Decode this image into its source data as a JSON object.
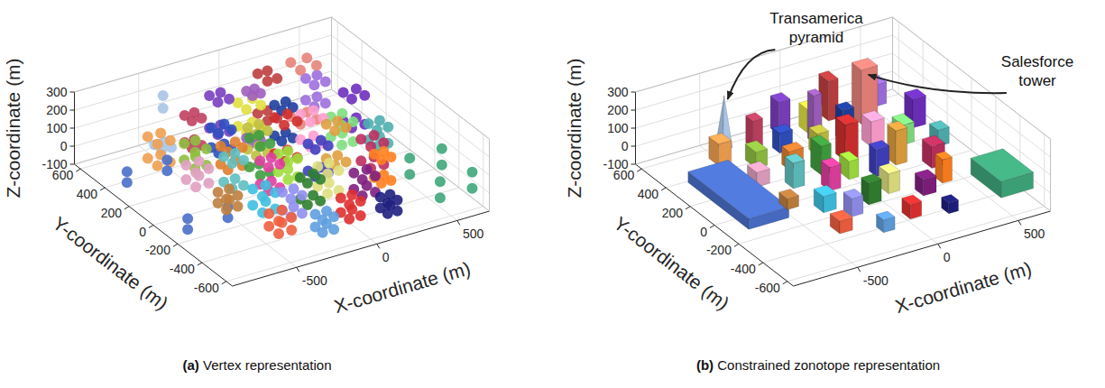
{
  "chart_data": [
    {
      "type": "scatter3d",
      "title": "(a) Vertex representation",
      "xlabel": "X-coordinate (m)",
      "ylabel": "Y-coordinate (m)",
      "zlabel": "Z-coordinate (m)",
      "xlim": [
        -900,
        700
      ],
      "xticks": [
        -500,
        0,
        500
      ],
      "ylim": [
        -650,
        650
      ],
      "yticks": [
        -600,
        -400,
        -200,
        0,
        200,
        400,
        600
      ],
      "zlim": [
        -100,
        300
      ],
      "zticks": [
        -100,
        0,
        100,
        200,
        300
      ],
      "grid": true,
      "pyramid": {
        "x": -500,
        "y": 450,
        "w": 60,
        "d": 60,
        "z": 280,
        "color": "#a9c4e6"
      },
      "buildings": [
        {
          "x": -750,
          "y": 0,
          "w": 250,
          "d": 500,
          "z": 60,
          "color": "#4a6fc9"
        },
        {
          "x": 550,
          "y": -450,
          "w": 200,
          "d": 250,
          "z": 90,
          "color": "#3fa67a"
        },
        {
          "x": -600,
          "y": 350,
          "w": 80,
          "d": 80,
          "z": 120,
          "color": "#f0a050"
        },
        {
          "x": -450,
          "y": 250,
          "w": 70,
          "d": 90,
          "z": 90,
          "color": "#8fbf3f"
        },
        {
          "x": -350,
          "y": 400,
          "w": 60,
          "d": 60,
          "z": 150,
          "color": "#c04060"
        },
        {
          "x": -250,
          "y": 300,
          "w": 80,
          "d": 60,
          "z": 110,
          "color": "#2f4fbf"
        },
        {
          "x": -150,
          "y": 450,
          "w": 70,
          "d": 70,
          "z": 180,
          "color": "#7a3fbf"
        },
        {
          "x": 0,
          "y": 400,
          "w": 90,
          "d": 70,
          "z": 130,
          "color": "#e0e040"
        },
        {
          "x": 150,
          "y": 450,
          "w": 60,
          "d": 80,
          "z": 220,
          "color": "#bf3f3f"
        },
        {
          "x": 300,
          "y": 350,
          "w": 100,
          "d": 80,
          "z": 300,
          "color": "#e8837a"
        },
        {
          "x": 450,
          "y": 450,
          "w": 70,
          "d": 70,
          "z": 120,
          "color": "#9f6fdf"
        },
        {
          "x": -550,
          "y": 100,
          "w": 80,
          "d": 80,
          "z": 80,
          "color": "#e0a0c0"
        },
        {
          "x": -400,
          "y": 0,
          "w": 70,
          "d": 70,
          "z": 140,
          "color": "#5fbfbf"
        },
        {
          "x": -300,
          "y": 150,
          "w": 90,
          "d": 60,
          "z": 100,
          "color": "#df7f2f"
        },
        {
          "x": -200,
          "y": 50,
          "w": 60,
          "d": 90,
          "z": 160,
          "color": "#3f9f3f"
        },
        {
          "x": -100,
          "y": 200,
          "w": 70,
          "d": 70,
          "z": 120,
          "color": "#bfbf3f"
        },
        {
          "x": 0,
          "y": 100,
          "w": 80,
          "d": 80,
          "z": 200,
          "color": "#cf2f2f"
        },
        {
          "x": 100,
          "y": 250,
          "w": 70,
          "d": 60,
          "z": 170,
          "color": "#1f3f9f"
        },
        {
          "x": 200,
          "y": 150,
          "w": 80,
          "d": 80,
          "z": 140,
          "color": "#ff9fcf"
        },
        {
          "x": 350,
          "y": 100,
          "w": 70,
          "d": 90,
          "z": 110,
          "color": "#7fdf7f"
        },
        {
          "x": 500,
          "y": 200,
          "w": 80,
          "d": 70,
          "z": 160,
          "color": "#6f2fbf"
        },
        {
          "x": -550,
          "y": -150,
          "w": 70,
          "d": 70,
          "z": 60,
          "color": "#bf7f3f"
        },
        {
          "x": -400,
          "y": -250,
          "w": 80,
          "d": 80,
          "z": 90,
          "color": "#3fbfdf"
        },
        {
          "x": -250,
          "y": -100,
          "w": 70,
          "d": 70,
          "z": 130,
          "color": "#df3f9f"
        },
        {
          "x": -100,
          "y": -50,
          "w": 60,
          "d": 80,
          "z": 100,
          "color": "#9fdf3f"
        },
        {
          "x": 50,
          "y": -100,
          "w": 80,
          "d": 60,
          "z": 150,
          "color": "#3f3fbf"
        },
        {
          "x": 200,
          "y": -50,
          "w": 70,
          "d": 70,
          "z": 190,
          "color": "#df9f3f"
        },
        {
          "x": 350,
          "y": -150,
          "w": 80,
          "d": 80,
          "z": 120,
          "color": "#bf2f5f"
        },
        {
          "x": 500,
          "y": 0,
          "w": 70,
          "d": 70,
          "z": 90,
          "color": "#4fafaf"
        },
        {
          "x": -450,
          "y": -450,
          "w": 80,
          "d": 80,
          "z": 70,
          "color": "#ef5f3f"
        },
        {
          "x": -300,
          "y": -350,
          "w": 70,
          "d": 70,
          "z": 100,
          "color": "#8f8fef"
        },
        {
          "x": -150,
          "y": -300,
          "w": 80,
          "d": 60,
          "z": 120,
          "color": "#2f7f2f"
        },
        {
          "x": 0,
          "y": -250,
          "w": 70,
          "d": 80,
          "z": 110,
          "color": "#dfdf7f"
        },
        {
          "x": 150,
          "y": -350,
          "w": 80,
          "d": 70,
          "z": 90,
          "color": "#7f1f7f"
        },
        {
          "x": 300,
          "y": -300,
          "w": 60,
          "d": 60,
          "z": 130,
          "color": "#ff7f1f"
        },
        {
          "x": -50,
          "y": -500,
          "w": 70,
          "d": 70,
          "z": 80,
          "color": "#df2f2f"
        },
        {
          "x": 150,
          "y": -550,
          "w": 60,
          "d": 60,
          "z": 60,
          "color": "#1f1f7f"
        },
        {
          "x": -250,
          "y": -550,
          "w": 70,
          "d": 60,
          "z": 70,
          "color": "#5f9fdf"
        },
        {
          "x": -50,
          "y": 300,
          "w": 50,
          "d": 50,
          "z": 260,
          "color": "#9f5fbf"
        }
      ]
    },
    {
      "type": "bar3d",
      "title": "(b) Constrained zonotope representation",
      "xlabel": "X-coordinate (m)",
      "ylabel": "Y-coordinate (m)",
      "zlabel": "Z-coordinate (m)",
      "xlim": [
        -900,
        700
      ],
      "xticks": [
        -500,
        0,
        500
      ],
      "ylim": [
        -650,
        650
      ],
      "yticks": [
        -600,
        -400,
        -200,
        0,
        200,
        400,
        600
      ],
      "zlim": [
        -100,
        300
      ],
      "zticks": [
        -100,
        0,
        100,
        200,
        300
      ],
      "grid": true,
      "annotations": [
        {
          "text": "Transamerica pyramid",
          "x": -500,
          "y": 450,
          "z": 250
        },
        {
          "text": "Salesforce tower",
          "x": 300,
          "y": 350,
          "z": 230
        }
      ],
      "pyramid": {
        "x": -500,
        "y": 450,
        "w": 60,
        "d": 60,
        "z": 280,
        "color": "#a9c4e6"
      },
      "buildings": [
        {
          "x": -750,
          "y": 0,
          "w": 250,
          "d": 500,
          "z": 60,
          "color": "#4a6fc9"
        },
        {
          "x": 550,
          "y": -450,
          "w": 200,
          "d": 250,
          "z": 90,
          "color": "#3fa67a"
        },
        {
          "x": -600,
          "y": 350,
          "w": 80,
          "d": 80,
          "z": 120,
          "color": "#f0a050"
        },
        {
          "x": -450,
          "y": 250,
          "w": 70,
          "d": 90,
          "z": 90,
          "color": "#8fbf3f"
        },
        {
          "x": -350,
          "y": 400,
          "w": 60,
          "d": 60,
          "z": 150,
          "color": "#c04060"
        },
        {
          "x": -250,
          "y": 300,
          "w": 80,
          "d": 60,
          "z": 110,
          "color": "#2f4fbf"
        },
        {
          "x": -150,
          "y": 450,
          "w": 70,
          "d": 70,
          "z": 180,
          "color": "#7a3fbf"
        },
        {
          "x": 0,
          "y": 400,
          "w": 90,
          "d": 70,
          "z": 130,
          "color": "#e0e040"
        },
        {
          "x": 150,
          "y": 450,
          "w": 60,
          "d": 80,
          "z": 220,
          "color": "#bf3f3f"
        },
        {
          "x": 300,
          "y": 350,
          "w": 100,
          "d": 80,
          "z": 300,
          "color": "#e8837a"
        },
        {
          "x": 450,
          "y": 450,
          "w": 70,
          "d": 70,
          "z": 120,
          "color": "#9f6fdf"
        },
        {
          "x": -550,
          "y": 100,
          "w": 80,
          "d": 80,
          "z": 80,
          "color": "#e0a0c0"
        },
        {
          "x": -400,
          "y": 0,
          "w": 70,
          "d": 70,
          "z": 140,
          "color": "#5fbfbf"
        },
        {
          "x": -300,
          "y": 150,
          "w": 90,
          "d": 60,
          "z": 100,
          "color": "#df7f2f"
        },
        {
          "x": -200,
          "y": 50,
          "w": 60,
          "d": 90,
          "z": 160,
          "color": "#3f9f3f"
        },
        {
          "x": -100,
          "y": 200,
          "w": 70,
          "d": 70,
          "z": 120,
          "color": "#bfbf3f"
        },
        {
          "x": 0,
          "y": 100,
          "w": 80,
          "d": 80,
          "z": 200,
          "color": "#cf2f2f"
        },
        {
          "x": 100,
          "y": 250,
          "w": 70,
          "d": 60,
          "z": 170,
          "color": "#1f3f9f"
        },
        {
          "x": 200,
          "y": 150,
          "w": 80,
          "d": 80,
          "z": 140,
          "color": "#ff9fcf"
        },
        {
          "x": 350,
          "y": 100,
          "w": 70,
          "d": 90,
          "z": 110,
          "color": "#7fdf7f"
        },
        {
          "x": 500,
          "y": 200,
          "w": 80,
          "d": 70,
          "z": 160,
          "color": "#6f2fbf"
        },
        {
          "x": -550,
          "y": -150,
          "w": 70,
          "d": 70,
          "z": 60,
          "color": "#bf7f3f"
        },
        {
          "x": -400,
          "y": -250,
          "w": 80,
          "d": 80,
          "z": 90,
          "color": "#3fbfdf"
        },
        {
          "x": -250,
          "y": -100,
          "w": 70,
          "d": 70,
          "z": 130,
          "color": "#df3f9f"
        },
        {
          "x": -100,
          "y": -50,
          "w": 60,
          "d": 80,
          "z": 100,
          "color": "#9fdf3f"
        },
        {
          "x": 50,
          "y": -100,
          "w": 80,
          "d": 60,
          "z": 150,
          "color": "#3f3fbf"
        },
        {
          "x": 200,
          "y": -50,
          "w": 70,
          "d": 70,
          "z": 190,
          "color": "#df9f3f"
        },
        {
          "x": 350,
          "y": -150,
          "w": 80,
          "d": 80,
          "z": 120,
          "color": "#bf2f5f"
        },
        {
          "x": 500,
          "y": 0,
          "w": 70,
          "d": 70,
          "z": 90,
          "color": "#4fafaf"
        },
        {
          "x": -450,
          "y": -450,
          "w": 80,
          "d": 80,
          "z": 70,
          "color": "#ef5f3f"
        },
        {
          "x": -300,
          "y": -350,
          "w": 70,
          "d": 70,
          "z": 100,
          "color": "#8f8fef"
        },
        {
          "x": -150,
          "y": -300,
          "w": 80,
          "d": 60,
          "z": 120,
          "color": "#2f7f2f"
        },
        {
          "x": 0,
          "y": -250,
          "w": 70,
          "d": 80,
          "z": 110,
          "color": "#dfdf7f"
        },
        {
          "x": 150,
          "y": -350,
          "w": 80,
          "d": 70,
          "z": 90,
          "color": "#7f1f7f"
        },
        {
          "x": 300,
          "y": -300,
          "w": 60,
          "d": 60,
          "z": 130,
          "color": "#ff7f1f"
        },
        {
          "x": -50,
          "y": -500,
          "w": 70,
          "d": 70,
          "z": 80,
          "color": "#df2f2f"
        },
        {
          "x": 150,
          "y": -550,
          "w": 60,
          "d": 60,
          "z": 60,
          "color": "#1f1f7f"
        },
        {
          "x": -250,
          "y": -550,
          "w": 70,
          "d": 60,
          "z": 70,
          "color": "#5f9fdf"
        },
        {
          "x": -50,
          "y": 300,
          "w": 50,
          "d": 50,
          "z": 260,
          "color": "#9f5fbf"
        }
      ]
    }
  ]
}
